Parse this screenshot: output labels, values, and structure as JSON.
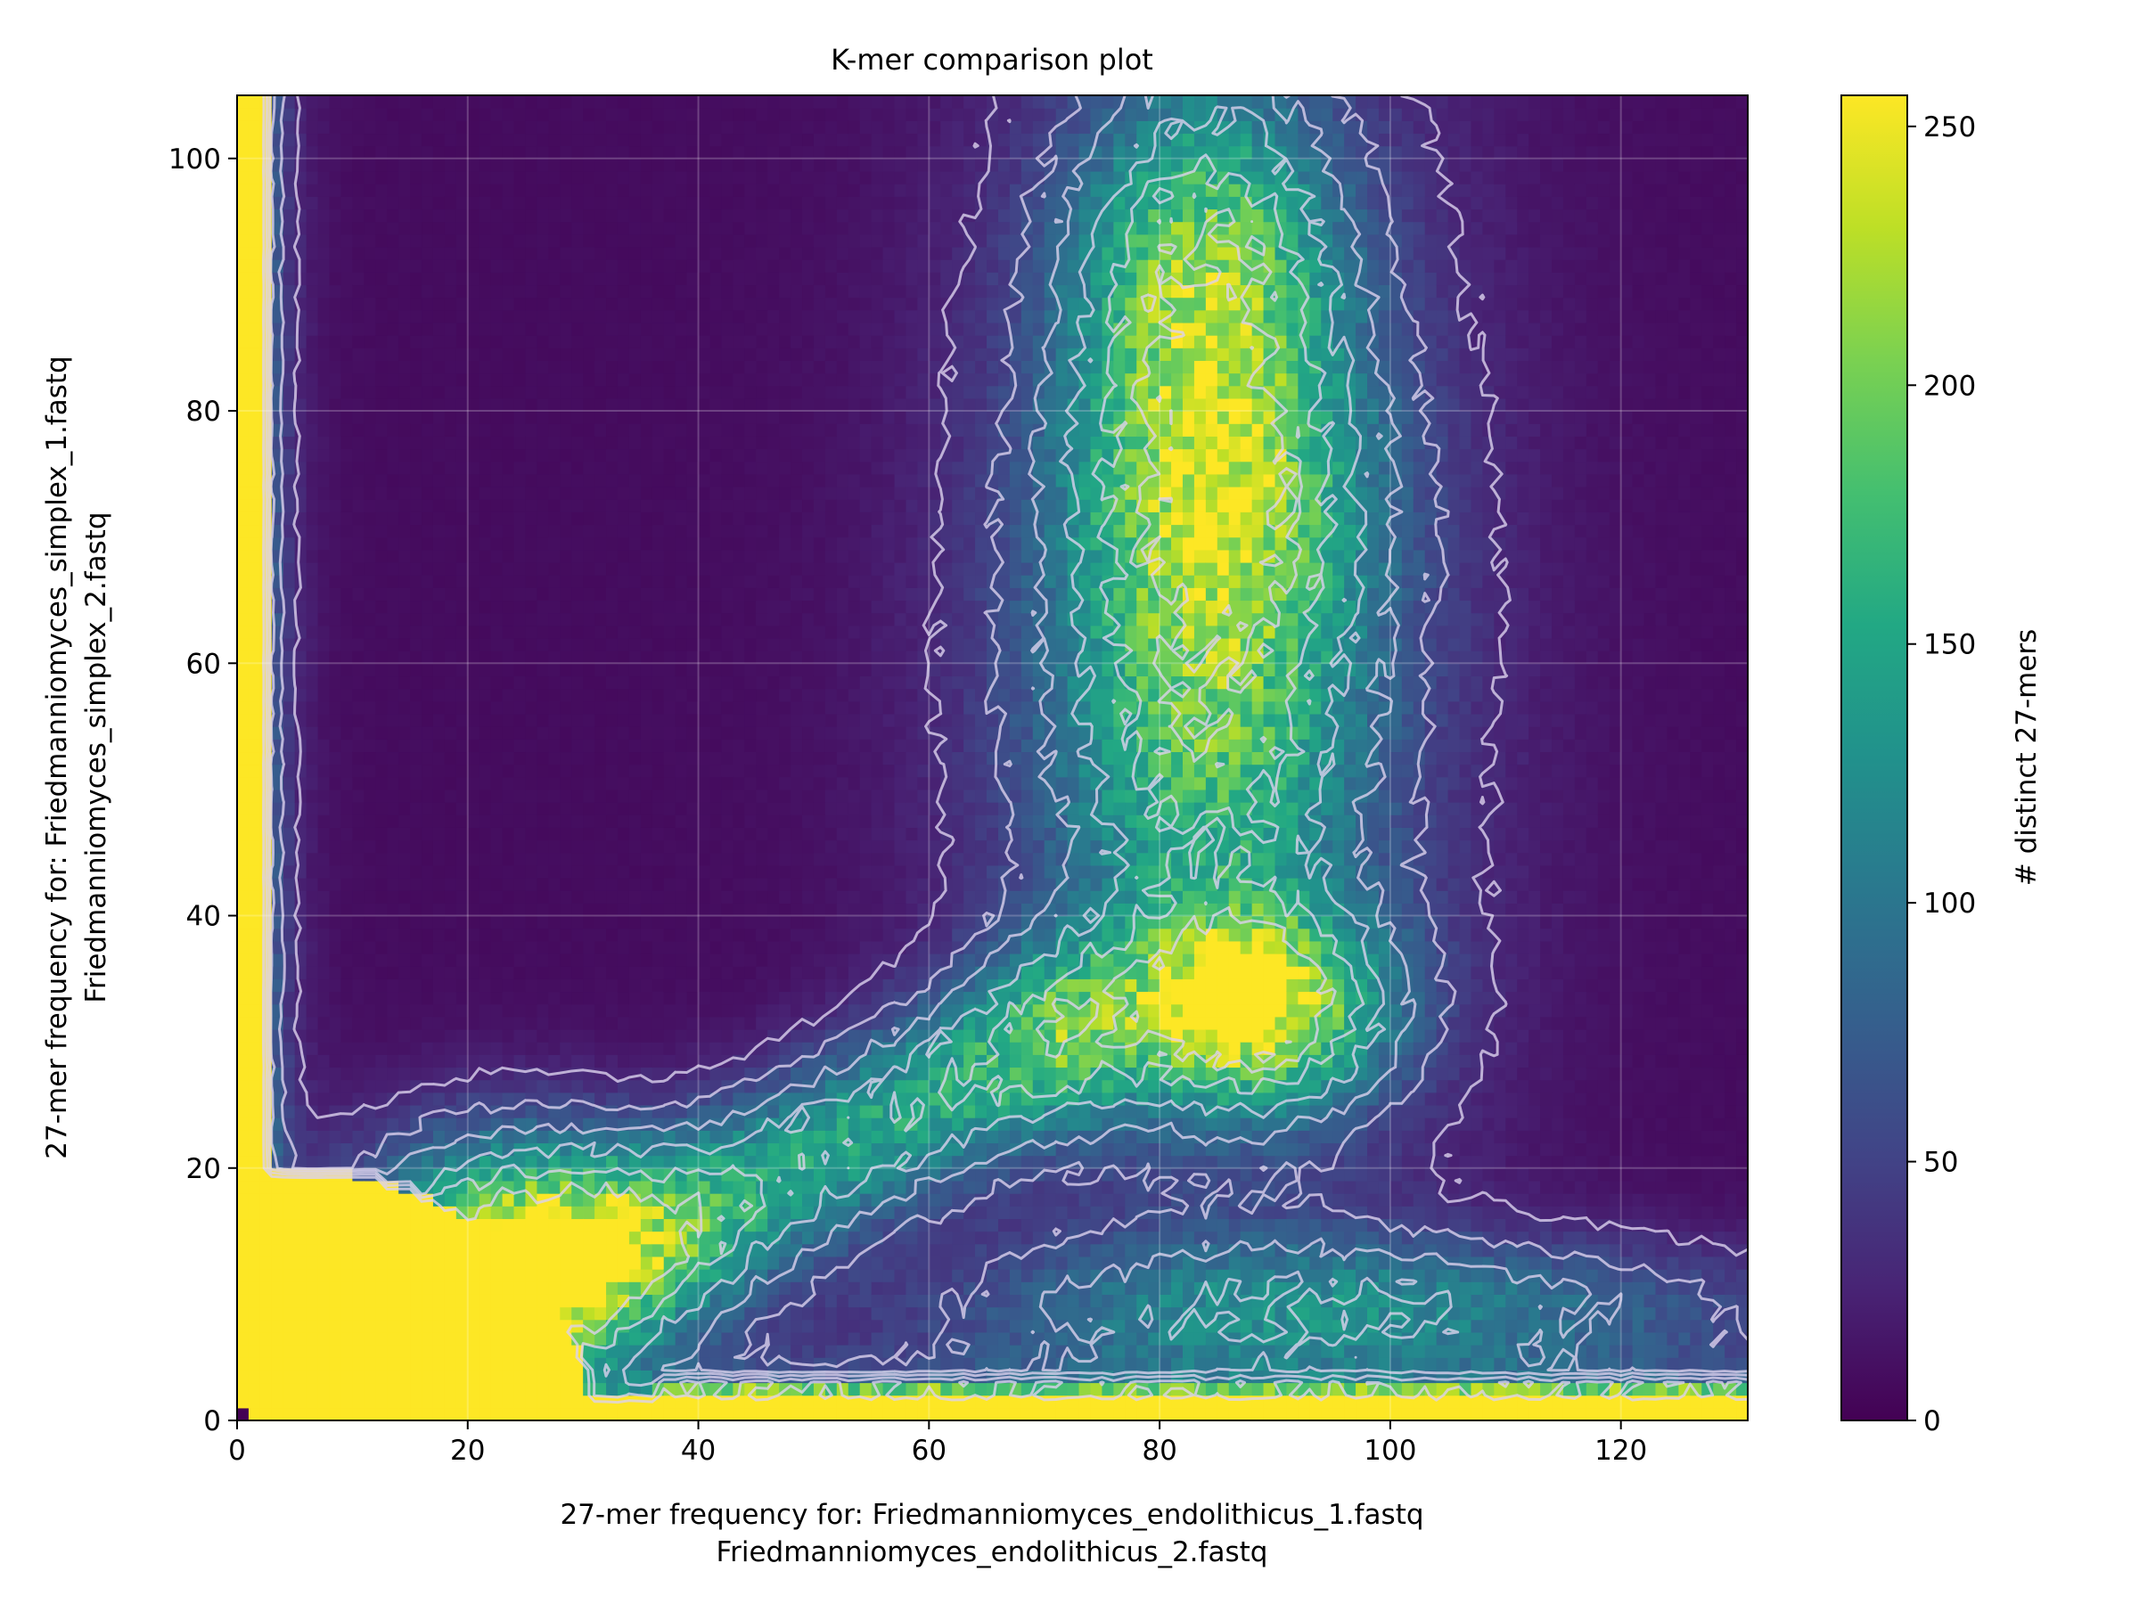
{
  "chart_data": {
    "type": "heatmap",
    "title": "K-mer comparison plot",
    "xlabel_lines": [
      "27-mer frequency for: Friedmanniomyces_endolithicus_1.fastq",
      "Friedmanniomyces_endolithicus_2.fastq"
    ],
    "ylabel_lines": [
      "27-mer frequency for: Friedmanniomyces_simplex_1.fastq",
      "Friedmanniomyces_simplex_2.fastq"
    ],
    "xlim": [
      0,
      131
    ],
    "ylim": [
      0,
      105
    ],
    "x_ticks": [
      0,
      20,
      40,
      60,
      80,
      100,
      120
    ],
    "x_tick_labels": [
      "0",
      "20",
      "40",
      "60",
      "80",
      "100",
      "120"
    ],
    "y_ticks": [
      0,
      20,
      40,
      60,
      80,
      100
    ],
    "y_tick_labels": [
      "0",
      "20",
      "40",
      "60",
      "80",
      "100"
    ],
    "grid": true,
    "colormap": "viridis",
    "color_range": [
      0,
      256
    ],
    "colorbar": {
      "label": "# distinct 27-mers",
      "ticks": [
        0,
        50,
        100,
        150,
        200,
        250
      ],
      "tick_labels": [
        "0",
        "50",
        "100",
        "150",
        "200",
        "250"
      ]
    },
    "contour_color": "#dcd2ee",
    "density_regions": [
      {
        "region": "near-zero column",
        "x": [
          0,
          3
        ],
        "y": [
          0,
          105
        ],
        "count": 256
      },
      {
        "region": "low-frequency blob",
        "x": [
          0,
          33
        ],
        "y": [
          0,
          20
        ],
        "count": 256
      },
      {
        "region": "near-zero row",
        "x": [
          0,
          131
        ],
        "y": [
          0,
          2
        ],
        "count": 256
      },
      {
        "region": "cluster peak",
        "x": 87,
        "y": 33,
        "count": 230
      },
      {
        "region": "upper band peak",
        "x": 84,
        "y": 72,
        "count": 160
      },
      {
        "region": "upper band top",
        "x": 84,
        "y": 92,
        "count": 150
      },
      {
        "region": "diagonal arm",
        "x": 40,
        "y": 22,
        "count": 150
      }
    ]
  }
}
